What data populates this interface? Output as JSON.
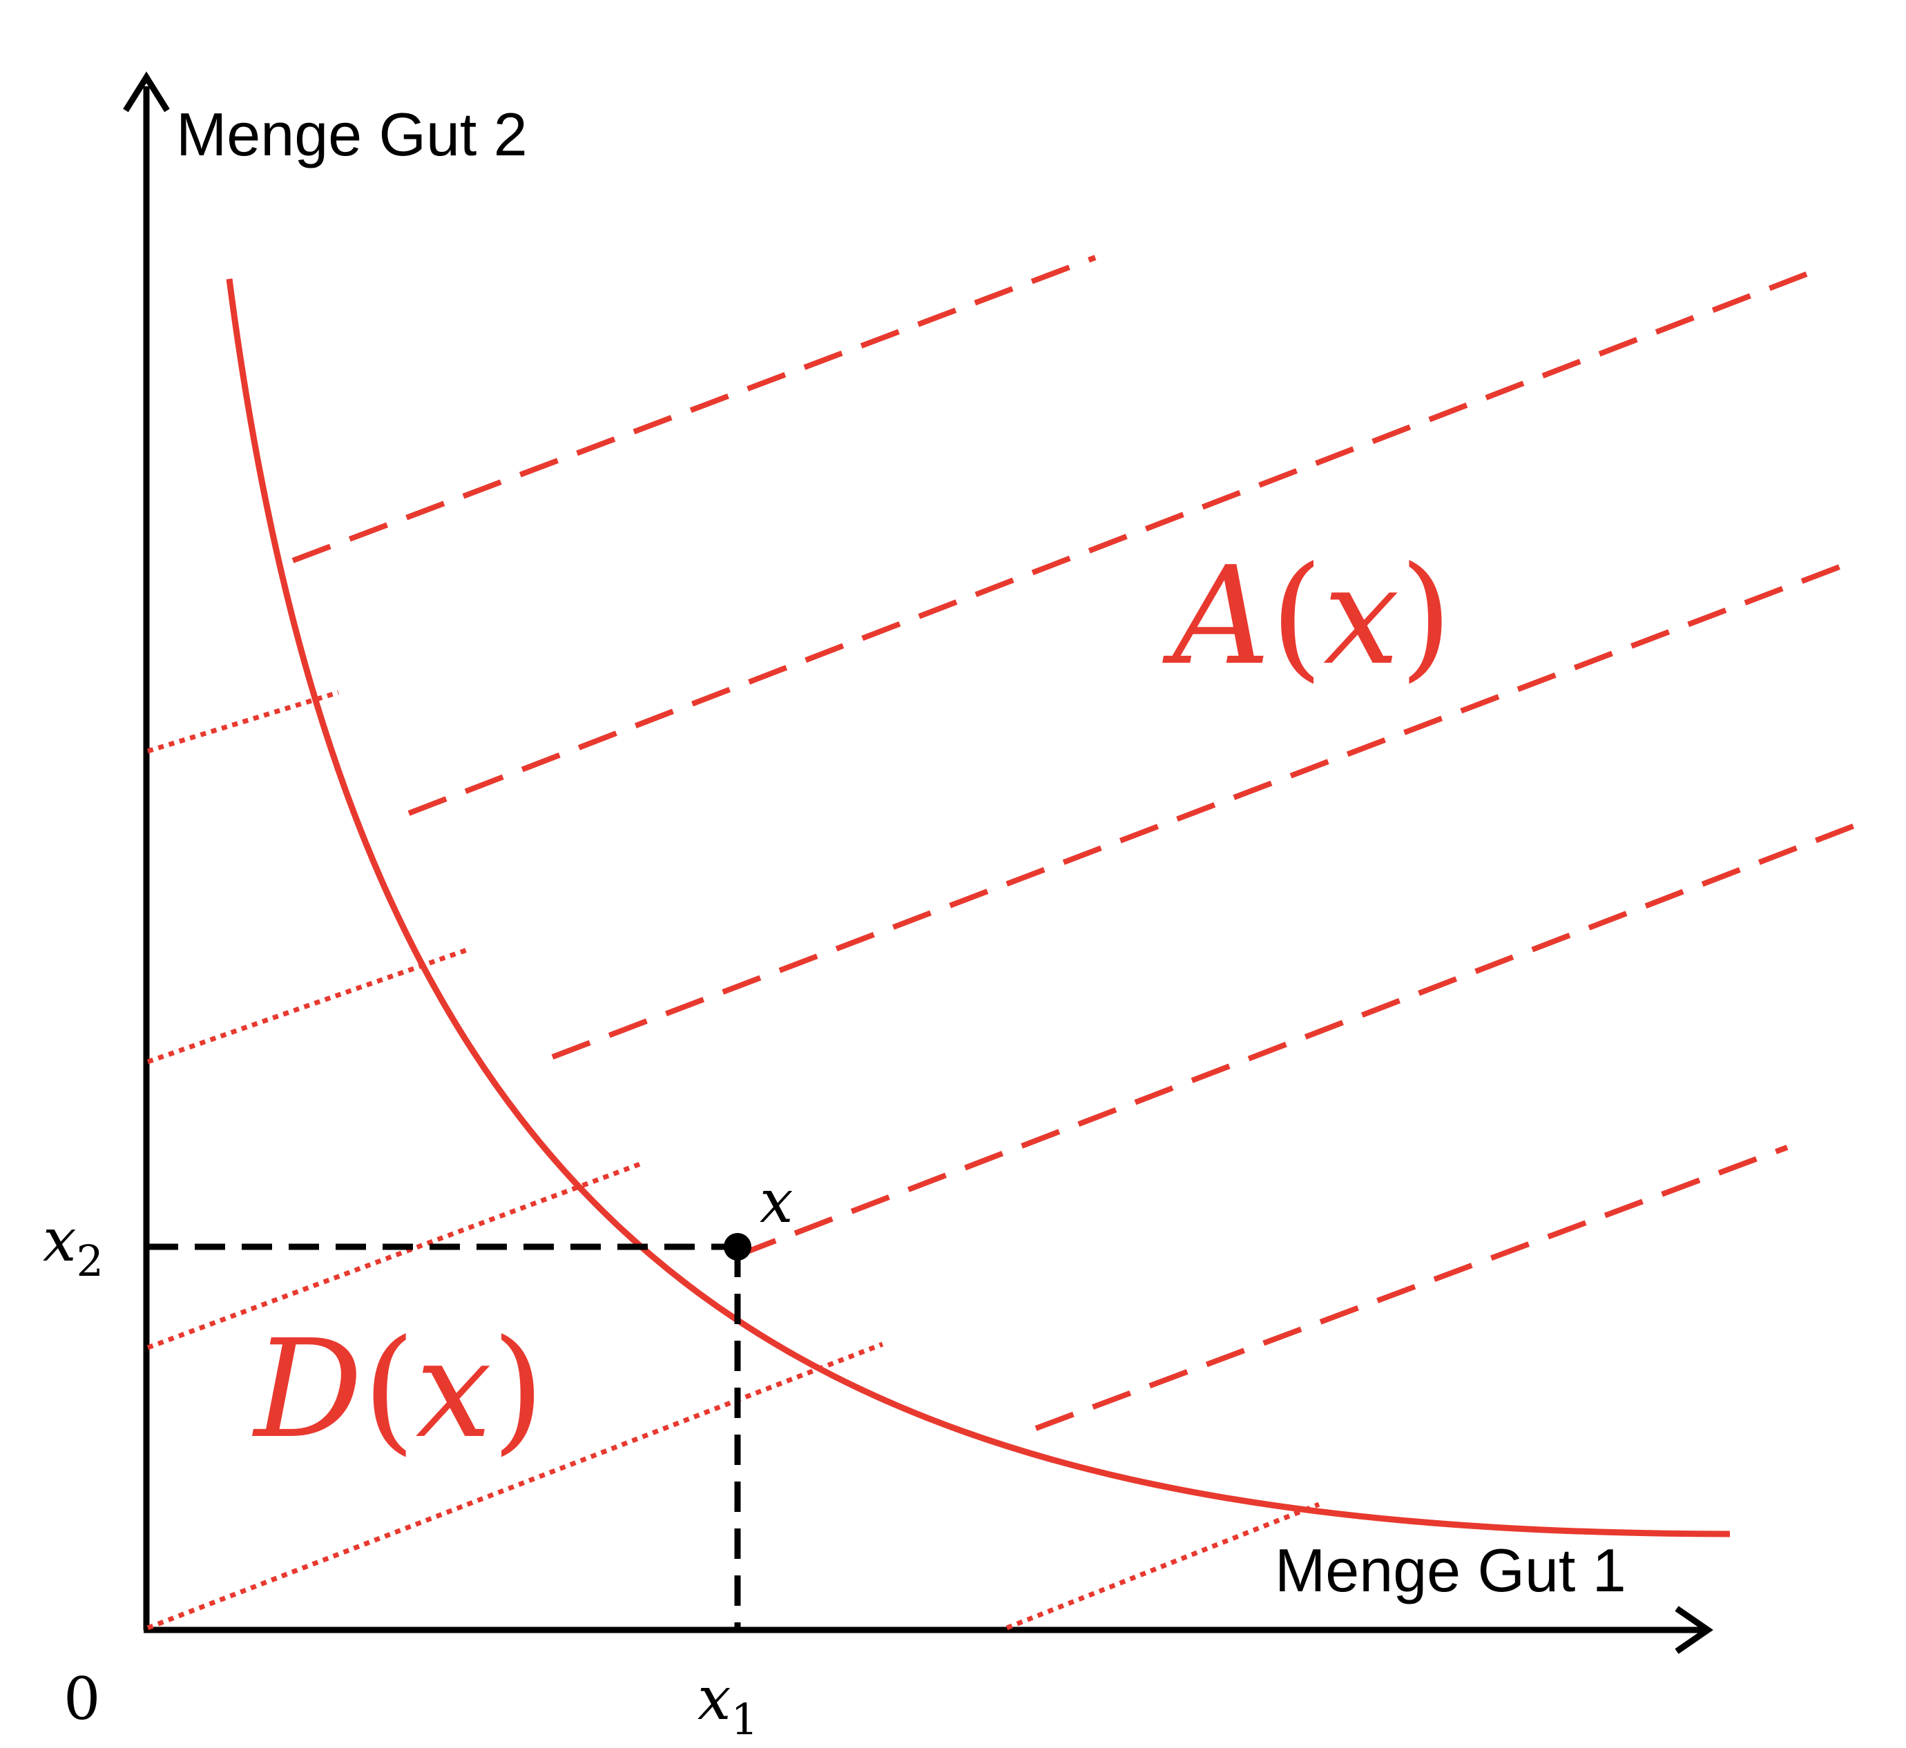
{
  "axes": {
    "x_label": "Menge Gut 1",
    "y_label": "Menge Gut 2",
    "origin_label": "0"
  },
  "point": {
    "label": "x",
    "x1_base": "x",
    "x1_sub": "1",
    "x2_base": "x",
    "x2_sub": "2"
  },
  "regions": {
    "upper_base": "A",
    "upper_arg": "x",
    "lower_base": "D",
    "lower_arg": "x"
  },
  "colors": {
    "red": "#e8392f",
    "black": "#000000"
  }
}
